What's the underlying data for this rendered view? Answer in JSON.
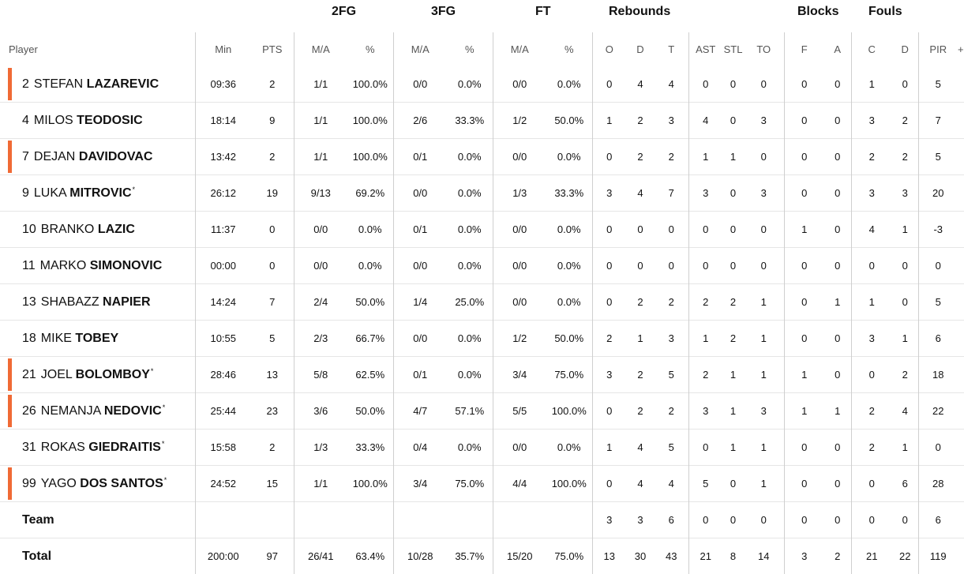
{
  "groups": {
    "two_fg": "2FG",
    "three_fg": "3FG",
    "ft": "FT",
    "rebounds": "Rebounds",
    "blocks": "Blocks",
    "fouls": "Fouls"
  },
  "columns": {
    "player": "Player",
    "min": "Min",
    "pts": "PTS",
    "fg2_ma": "M/A",
    "fg2_pct": "%",
    "fg3_ma": "M/A",
    "fg3_pct": "%",
    "ft_ma": "M/A",
    "ft_pct": "%",
    "reb_o": "O",
    "reb_d": "D",
    "reb_t": "T",
    "ast": "AST",
    "stl": "STL",
    "to": "TO",
    "blk_f": "F",
    "blk_a": "A",
    "foul_c": "C",
    "foul_d": "D",
    "pir": "PIR",
    "more": "+"
  },
  "colors": {
    "starter": "#f06a35",
    "separator": "#cfcfcf",
    "row_border": "#e6e6e6"
  },
  "players": [
    {
      "num": "2",
      "first": "STEFAN",
      "last": "LAZAREVIC",
      "mark": "",
      "starter": true,
      "min": "09:36",
      "pts": "2",
      "fg2_ma": "1/1",
      "fg2_pct": "100.0%",
      "fg3_ma": "0/0",
      "fg3_pct": "0.0%",
      "ft_ma": "0/0",
      "ft_pct": "0.0%",
      "o": "0",
      "d": "4",
      "t": "4",
      "ast": "0",
      "stl": "0",
      "to": "0",
      "bf": "0",
      "ba": "0",
      "fc": "1",
      "fd": "0",
      "pir": "5"
    },
    {
      "num": "4",
      "first": "MILOS",
      "last": "TEODOSIC",
      "mark": "",
      "starter": false,
      "min": "18:14",
      "pts": "9",
      "fg2_ma": "1/1",
      "fg2_pct": "100.0%",
      "fg3_ma": "2/6",
      "fg3_pct": "33.3%",
      "ft_ma": "1/2",
      "ft_pct": "50.0%",
      "o": "1",
      "d": "2",
      "t": "3",
      "ast": "4",
      "stl": "0",
      "to": "3",
      "bf": "0",
      "ba": "0",
      "fc": "3",
      "fd": "2",
      "pir": "7"
    },
    {
      "num": "7",
      "first": "DEJAN",
      "last": "DAVIDOVAC",
      "mark": "",
      "starter": true,
      "min": "13:42",
      "pts": "2",
      "fg2_ma": "1/1",
      "fg2_pct": "100.0%",
      "fg3_ma": "0/1",
      "fg3_pct": "0.0%",
      "ft_ma": "0/0",
      "ft_pct": "0.0%",
      "o": "0",
      "d": "2",
      "t": "2",
      "ast": "1",
      "stl": "1",
      "to": "0",
      "bf": "0",
      "ba": "0",
      "fc": "2",
      "fd": "2",
      "pir": "5"
    },
    {
      "num": "9",
      "first": "LUKA",
      "last": "MITROVIC",
      "mark": "*",
      "starter": false,
      "min": "26:12",
      "pts": "19",
      "fg2_ma": "9/13",
      "fg2_pct": "69.2%",
      "fg3_ma": "0/0",
      "fg3_pct": "0.0%",
      "ft_ma": "1/3",
      "ft_pct": "33.3%",
      "o": "3",
      "d": "4",
      "t": "7",
      "ast": "3",
      "stl": "0",
      "to": "3",
      "bf": "0",
      "ba": "0",
      "fc": "3",
      "fd": "3",
      "pir": "20"
    },
    {
      "num": "10",
      "first": "BRANKO",
      "last": "LAZIC",
      "mark": "",
      "starter": false,
      "min": "11:37",
      "pts": "0",
      "fg2_ma": "0/0",
      "fg2_pct": "0.0%",
      "fg3_ma": "0/1",
      "fg3_pct": "0.0%",
      "ft_ma": "0/0",
      "ft_pct": "0.0%",
      "o": "0",
      "d": "0",
      "t": "0",
      "ast": "0",
      "stl": "0",
      "to": "0",
      "bf": "1",
      "ba": "0",
      "fc": "4",
      "fd": "1",
      "pir": "-3"
    },
    {
      "num": "11",
      "first": "MARKO",
      "last": "SIMONOVIC",
      "mark": "",
      "starter": false,
      "min": "00:00",
      "pts": "0",
      "fg2_ma": "0/0",
      "fg2_pct": "0.0%",
      "fg3_ma": "0/0",
      "fg3_pct": "0.0%",
      "ft_ma": "0/0",
      "ft_pct": "0.0%",
      "o": "0",
      "d": "0",
      "t": "0",
      "ast": "0",
      "stl": "0",
      "to": "0",
      "bf": "0",
      "ba": "0",
      "fc": "0",
      "fd": "0",
      "pir": "0"
    },
    {
      "num": "13",
      "first": "SHABAZZ",
      "last": "NAPIER",
      "mark": "",
      "starter": false,
      "min": "14:24",
      "pts": "7",
      "fg2_ma": "2/4",
      "fg2_pct": "50.0%",
      "fg3_ma": "1/4",
      "fg3_pct": "25.0%",
      "ft_ma": "0/0",
      "ft_pct": "0.0%",
      "o": "0",
      "d": "2",
      "t": "2",
      "ast": "2",
      "stl": "2",
      "to": "1",
      "bf": "0",
      "ba": "1",
      "fc": "1",
      "fd": "0",
      "pir": "5"
    },
    {
      "num": "18",
      "first": "MIKE",
      "last": "TOBEY",
      "mark": "",
      "starter": false,
      "min": "10:55",
      "pts": "5",
      "fg2_ma": "2/3",
      "fg2_pct": "66.7%",
      "fg3_ma": "0/0",
      "fg3_pct": "0.0%",
      "ft_ma": "1/2",
      "ft_pct": "50.0%",
      "o": "2",
      "d": "1",
      "t": "3",
      "ast": "1",
      "stl": "2",
      "to": "1",
      "bf": "0",
      "ba": "0",
      "fc": "3",
      "fd": "1",
      "pir": "6"
    },
    {
      "num": "21",
      "first": "JOEL",
      "last": "BOLOMBOY",
      "mark": "*",
      "starter": true,
      "min": "28:46",
      "pts": "13",
      "fg2_ma": "5/8",
      "fg2_pct": "62.5%",
      "fg3_ma": "0/1",
      "fg3_pct": "0.0%",
      "ft_ma": "3/4",
      "ft_pct": "75.0%",
      "o": "3",
      "d": "2",
      "t": "5",
      "ast": "2",
      "stl": "1",
      "to": "1",
      "bf": "1",
      "ba": "0",
      "fc": "0",
      "fd": "2",
      "pir": "18"
    },
    {
      "num": "26",
      "first": "NEMANJA",
      "last": "NEDOVIC",
      "mark": "*",
      "starter": true,
      "min": "25:44",
      "pts": "23",
      "fg2_ma": "3/6",
      "fg2_pct": "50.0%",
      "fg3_ma": "4/7",
      "fg3_pct": "57.1%",
      "ft_ma": "5/5",
      "ft_pct": "100.0%",
      "o": "0",
      "d": "2",
      "t": "2",
      "ast": "3",
      "stl": "1",
      "to": "3",
      "bf": "1",
      "ba": "1",
      "fc": "2",
      "fd": "4",
      "pir": "22"
    },
    {
      "num": "31",
      "first": "ROKAS",
      "last": "GIEDRAITIS",
      "mark": "*",
      "starter": false,
      "min": "15:58",
      "pts": "2",
      "fg2_ma": "1/3",
      "fg2_pct": "33.3%",
      "fg3_ma": "0/4",
      "fg3_pct": "0.0%",
      "ft_ma": "0/0",
      "ft_pct": "0.0%",
      "o": "1",
      "d": "4",
      "t": "5",
      "ast": "0",
      "stl": "1",
      "to": "1",
      "bf": "0",
      "ba": "0",
      "fc": "2",
      "fd": "1",
      "pir": "0"
    },
    {
      "num": "99",
      "first": "YAGO",
      "last": "DOS SANTOS",
      "mark": "*",
      "starter": true,
      "min": "24:52",
      "pts": "15",
      "fg2_ma": "1/1",
      "fg2_pct": "100.0%",
      "fg3_ma": "3/4",
      "fg3_pct": "75.0%",
      "ft_ma": "4/4",
      "ft_pct": "100.0%",
      "o": "0",
      "d": "4",
      "t": "4",
      "ast": "5",
      "stl": "0",
      "to": "1",
      "bf": "0",
      "ba": "0",
      "fc": "0",
      "fd": "6",
      "pir": "28"
    }
  ],
  "team_row": {
    "label": "Team",
    "o": "3",
    "d": "3",
    "t": "6",
    "ast": "0",
    "stl": "0",
    "to": "0",
    "bf": "0",
    "ba": "0",
    "fc": "0",
    "fd": "0",
    "pir": "6"
  },
  "total_row": {
    "label": "Total",
    "min": "200:00",
    "pts": "97",
    "fg2_ma": "26/41",
    "fg2_pct": "63.4%",
    "fg3_ma": "10/28",
    "fg3_pct": "35.7%",
    "ft_ma": "15/20",
    "ft_pct": "75.0%",
    "o": "13",
    "d": "30",
    "t": "43",
    "ast": "21",
    "stl": "8",
    "to": "14",
    "bf": "3",
    "ba": "2",
    "fc": "21",
    "fd": "22",
    "pir": "119"
  }
}
